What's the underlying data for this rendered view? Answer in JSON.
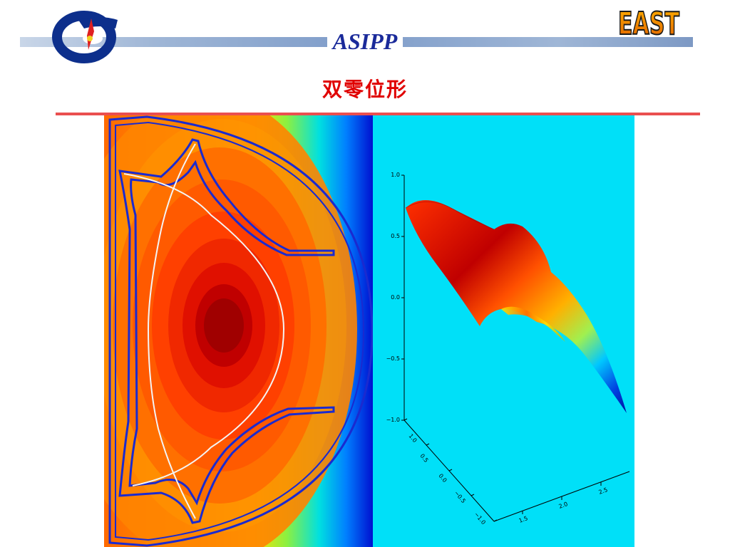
{
  "header": {
    "org_name": "ASIPP",
    "logo_right": "EAST"
  },
  "slide": {
    "title": "双零位形"
  },
  "plot3d": {
    "z_ticks": [
      "1.0",
      "0.5",
      "0.0",
      "−0.5",
      "−1.0"
    ],
    "depth_ticks": [
      "1.0",
      "0.5",
      "0.0",
      "−0.5",
      "−1.0"
    ],
    "x_ticks": [
      "1.5",
      "2.0",
      "2.5"
    ]
  },
  "colors": {
    "title": "#e00000",
    "org": "#1a2a9a",
    "divider": "#ea4f4f",
    "plot_bg": "#00e0f8",
    "boundary": "#1a2ad0"
  }
}
